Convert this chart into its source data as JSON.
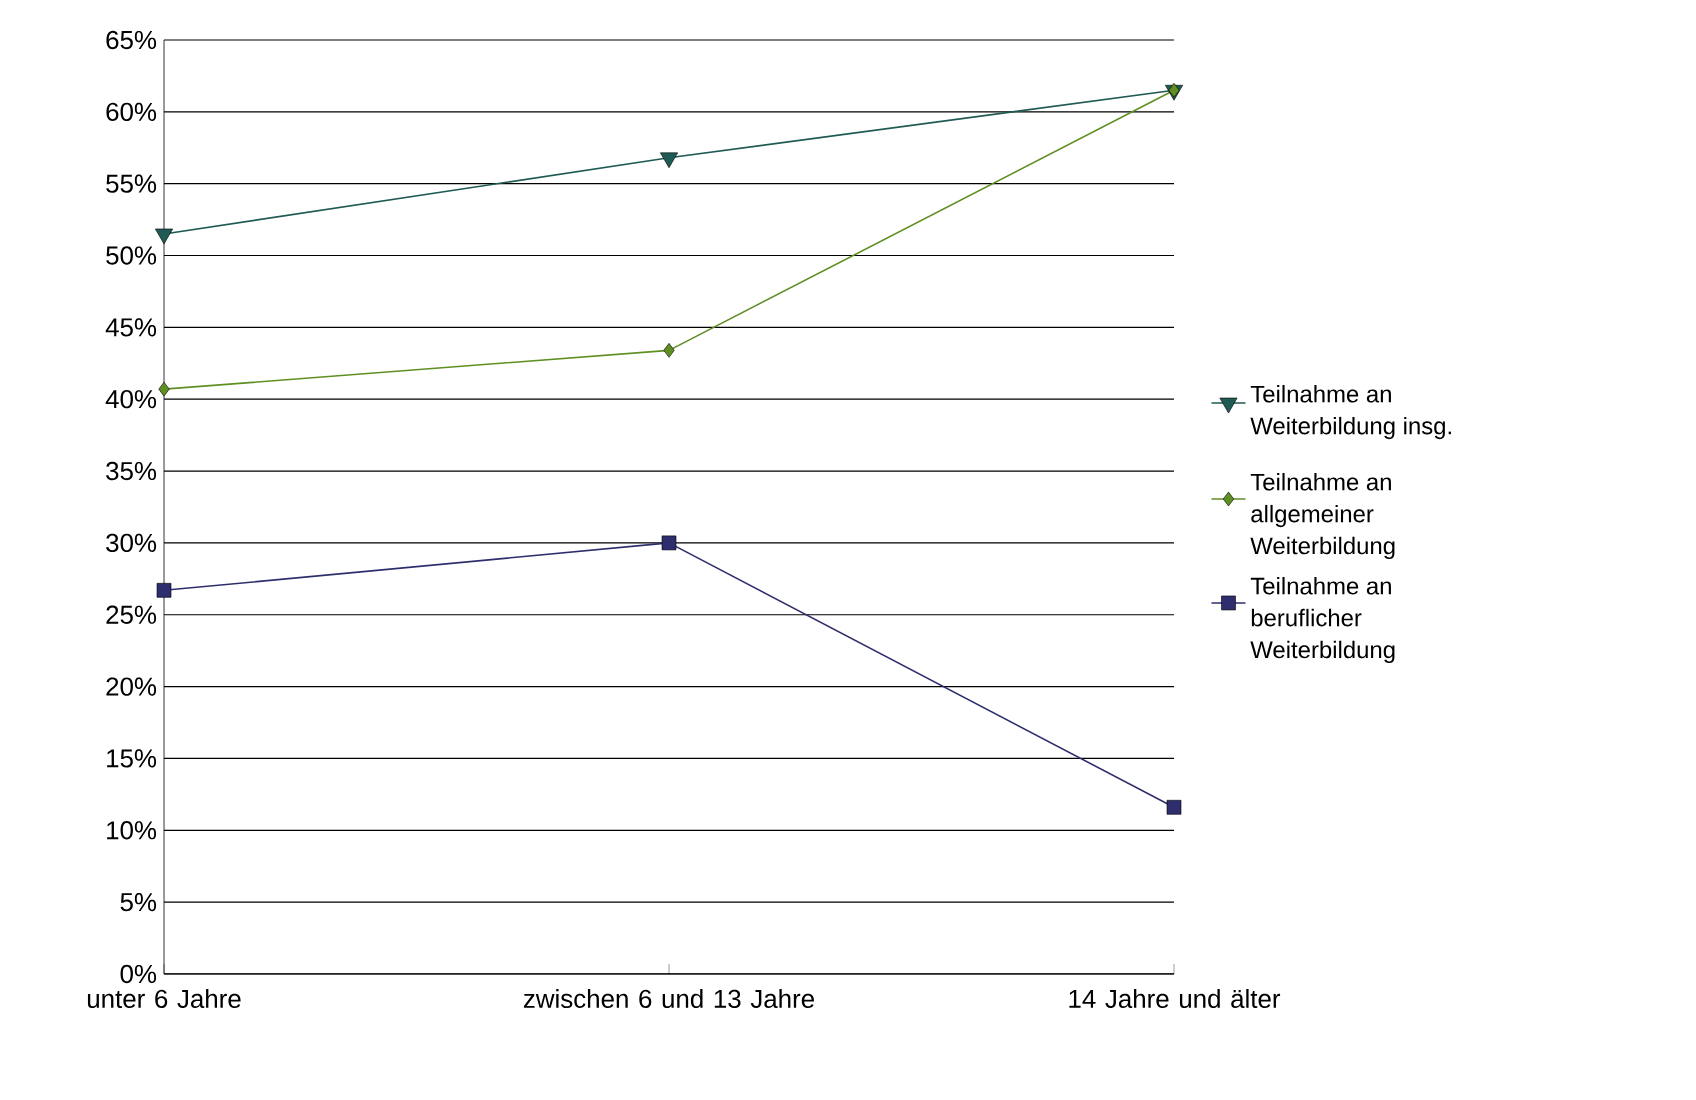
{
  "chart_data": {
    "type": "line",
    "categories": [
      "unter 6 Jahre",
      "zwischen 6 und 13 Jahre",
      "14 Jahre und älter"
    ],
    "series": [
      {
        "name": "Teilnahme an Weiterbildung insg.",
        "color": "#1f5a55",
        "marker": "triangle",
        "values": [
          51.5,
          56.8,
          61.5
        ]
      },
      {
        "name": "Teilnahme an allgemeiner Weiterbildung",
        "color": "#5f8f22",
        "marker": "diamond",
        "values": [
          40.7,
          43.4,
          61.5
        ]
      },
      {
        "name": "Teilnahme an beruflicher Weiterbildung",
        "color": "#2e2e6e",
        "marker": "square",
        "values": [
          26.7,
          30.0,
          11.6
        ]
      }
    ],
    "ylim": [
      0,
      65
    ],
    "yticks": [
      {
        "value": 0,
        "label": "0%"
      },
      {
        "value": 5,
        "label": "5%"
      },
      {
        "value": 10,
        "label": "10%"
      },
      {
        "value": 15,
        "label": "15%"
      },
      {
        "value": 20,
        "label": "20%"
      },
      {
        "value": 25,
        "label": "25%"
      },
      {
        "value": 30,
        "label": "30%"
      },
      {
        "value": 35,
        "label": "35%"
      },
      {
        "value": 40,
        "label": "40%"
      },
      {
        "value": 45,
        "label": "45%"
      },
      {
        "value": 50,
        "label": "50%"
      },
      {
        "value": 55,
        "label": "55%"
      },
      {
        "value": 60,
        "label": "60%"
      },
      {
        "value": 65,
        "label": "65%"
      }
    ],
    "grid": "y",
    "legend": "right",
    "line_style": "solid"
  }
}
